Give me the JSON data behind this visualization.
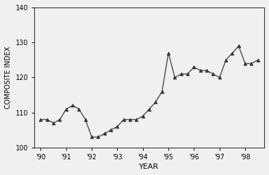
{
  "x": [
    1990.0,
    1990.25,
    1990.5,
    1990.75,
    1991.0,
    1991.25,
    1991.5,
    1991.75,
    1992.0,
    1992.25,
    1992.5,
    1992.75,
    1993.0,
    1993.25,
    1993.5,
    1993.75,
    1994.0,
    1994.25,
    1994.5,
    1994.75,
    1995.0,
    1995.25,
    1995.5,
    1995.75,
    1996.0,
    1996.25,
    1996.5,
    1996.75,
    1997.0,
    1997.25,
    1997.5,
    1997.75,
    1998.0,
    1998.25,
    1998.5
  ],
  "y": [
    108,
    108,
    107,
    108,
    111,
    112,
    111,
    108,
    103,
    103,
    104,
    105,
    106,
    108,
    108,
    108,
    109,
    111,
    113,
    116,
    127,
    120,
    121,
    121,
    123,
    122,
    122,
    121,
    120,
    125,
    127,
    129,
    124,
    124,
    125
  ],
  "xlim": [
    1989.75,
    1998.75
  ],
  "ylim": [
    100,
    140
  ],
  "xticks": [
    1990,
    1991,
    1992,
    1993,
    1994,
    1995,
    1996,
    1997,
    1998
  ],
  "xticklabels": [
    "'90",
    "'91",
    "'92",
    "'93",
    "'94",
    "'95",
    "'96",
    "'97",
    "'98"
  ],
  "yticks": [
    100,
    110,
    120,
    130,
    140
  ],
  "xlabel": "YEAR",
  "ylabel": "COMPOSITE INDEX",
  "line_color": "#555555",
  "marker": "^",
  "marker_color": "#333333",
  "marker_size": 3.5,
  "background_color": "#f0f0f0",
  "line_width": 1.1
}
